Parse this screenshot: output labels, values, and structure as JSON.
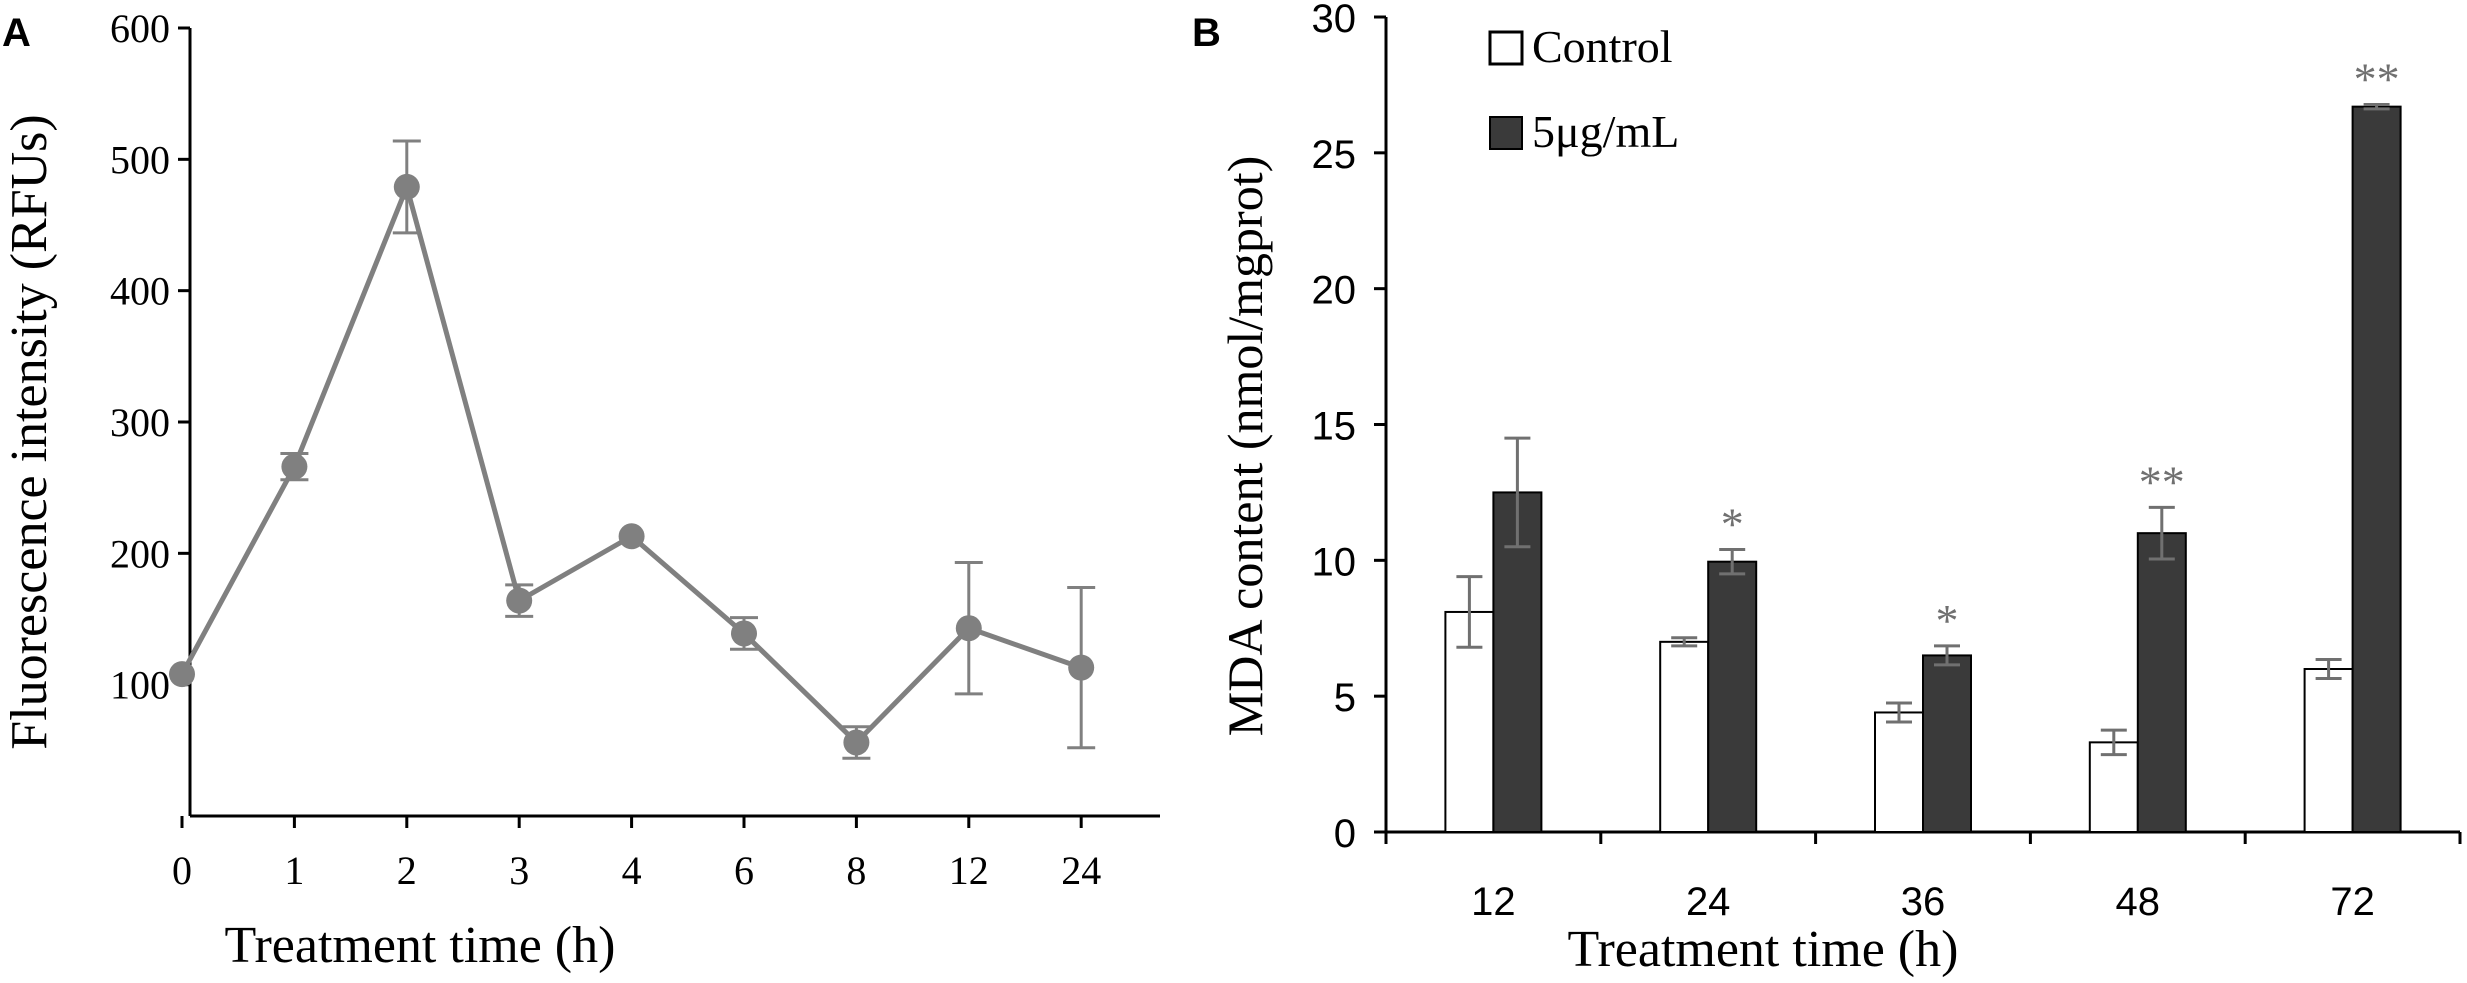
{
  "chart_data": [
    {
      "panel": "A",
      "type": "line",
      "title": "",
      "xlabel": "Treatment time (h)",
      "ylabel": "Fluorescence intensity (RFUs)",
      "categories": [
        "0",
        "1",
        "2",
        "3",
        "4",
        "6",
        "8",
        "12",
        "24"
      ],
      "ylim": [
        0,
        600
      ],
      "yticks": [
        "100",
        "200",
        "300",
        "400",
        "500",
        "600"
      ],
      "series": [
        {
          "name": "Fluorescence intensity",
          "values": [
            108,
            266,
            479,
            164,
            213,
            139,
            56,
            143,
            113
          ],
          "errors": [
            0,
            10,
            35,
            12,
            0,
            12,
            12,
            50,
            61
          ]
        }
      ],
      "colors": {
        "line": "#808080",
        "marker": "#808080",
        "axis": "#000000"
      }
    },
    {
      "panel": "B",
      "type": "bar",
      "title": "",
      "xlabel": "Treatment time (h)",
      "ylabel": "MDA content (nmol/mgprot)",
      "categories": [
        "12",
        "24",
        "36",
        "48",
        "72"
      ],
      "ylim": [
        0,
        30
      ],
      "yticks": [
        "0",
        "5",
        "10",
        "15",
        "20",
        "25",
        "30"
      ],
      "legend_position": "top-left",
      "series": [
        {
          "name": "Control",
          "values": [
            8.1,
            7.0,
            4.4,
            3.3,
            6.0
          ],
          "errors": [
            1.3,
            0.15,
            0.35,
            0.45,
            0.35
          ],
          "significance": [
            "",
            "",
            "",
            "",
            ""
          ]
        },
        {
          "name": "5μg/mL",
          "values": [
            12.5,
            9.95,
            6.5,
            11.0,
            26.7
          ],
          "errors": [
            2.0,
            0.45,
            0.35,
            0.95,
            0.08
          ],
          "significance": [
            "",
            "*",
            "*",
            "**",
            "**"
          ]
        }
      ],
      "colors": {
        "control_fill": "#ffffff",
        "treated_fill": "#3a3a3a",
        "bar_edge": "#000000",
        "errorbar": "#707070",
        "significance": "#707070"
      }
    }
  ]
}
